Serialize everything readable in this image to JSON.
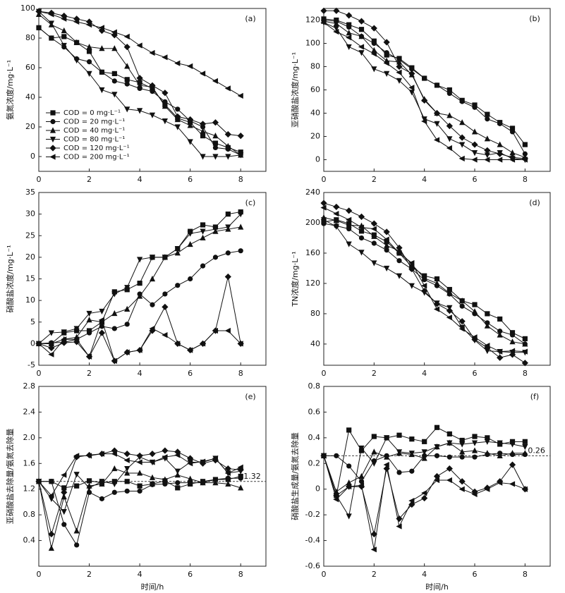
{
  "chart_data": [
    {
      "type": "line",
      "title": "(a)",
      "y_label": "氨氮浓度/mg·L⁻¹",
      "xlim": [
        0,
        9
      ],
      "xticks": [
        0,
        2,
        4,
        6,
        8
      ],
      "ylim": [
        -10,
        100
      ],
      "yticks": [
        0,
        20,
        40,
        60,
        80,
        100
      ],
      "legend": "center left",
      "x": [
        0,
        0.5,
        1,
        1.5,
        2,
        2.5,
        3,
        3.5,
        4,
        4.5,
        5,
        5.5,
        6,
        6.5,
        7,
        7.5,
        8
      ],
      "series": [
        {
          "name": "COD = 0 mg·L⁻¹",
          "color": "#111",
          "marker": "square",
          "values": [
            87,
            80,
            81,
            77,
            71,
            57,
            56,
            52,
            50,
            46,
            35,
            26,
            23,
            14,
            9,
            6,
            3
          ]
        },
        {
          "name": "COD = 20 mg·L⁻¹",
          "color": "#111",
          "marker": "circle",
          "values": [
            87,
            80,
            74,
            66,
            64,
            57,
            51,
            49,
            46,
            44,
            37,
            32,
            24,
            20,
            6,
            5,
            1
          ]
        },
        {
          "name": "COD = 40 mg·L⁻¹",
          "color": "#111",
          "marker": "triangle-up",
          "values": [
            96,
            89,
            85,
            77,
            74,
            73,
            73,
            61,
            48,
            47,
            34,
            25,
            21,
            17,
            14,
            7,
            1
          ]
        },
        {
          "name": "COD = 80 mg·L⁻¹",
          "color": "#111",
          "marker": "triangle-down",
          "values": [
            98,
            90,
            75,
            65,
            56,
            45,
            42,
            32,
            31,
            28,
            24,
            20,
            10,
            0,
            0,
            0,
            1
          ]
        },
        {
          "name": "COD = 120 mg·L⁻¹",
          "color": "#111",
          "marker": "diamond",
          "values": [
            98,
            97,
            95,
            93,
            91,
            85,
            82,
            74,
            53,
            48,
            43,
            27,
            25,
            22,
            23,
            15,
            14
          ]
        },
        {
          "name": "COD = 200 mg·L⁻¹",
          "color": "#111",
          "marker": "triangle-left",
          "values": [
            98,
            96,
            93,
            91,
            89,
            87,
            84,
            81,
            75,
            70,
            67,
            63,
            61,
            56,
            51,
            46,
            41
          ]
        }
      ]
    },
    {
      "type": "line",
      "title": "(b)",
      "y_label": "亚硝酸盐浓度/mg·L⁻¹",
      "xlim": [
        0,
        9
      ],
      "xticks": [
        0,
        2,
        4,
        6,
        8
      ],
      "ylim": [
        -10,
        130
      ],
      "yticks": [
        0,
        20,
        40,
        60,
        80,
        100,
        120
      ],
      "x": [
        0,
        0.5,
        1,
        1.5,
        2,
        2.5,
        3,
        3.5,
        4,
        4.5,
        5,
        5.5,
        6,
        6.5,
        7,
        7.5,
        8
      ],
      "series": [
        {
          "color": "#111",
          "marker": "square",
          "values": [
            121,
            120,
            116,
            112,
            102,
            90,
            87,
            79,
            70,
            64,
            60,
            51,
            47,
            39,
            32,
            27,
            13
          ]
        },
        {
          "color": "#111",
          "marker": "circle",
          "values": [
            120,
            119,
            114,
            106,
            100,
            92,
            86,
            78,
            70,
            64,
            57,
            50,
            45,
            35,
            31,
            24,
            5
          ]
        },
        {
          "color": "#111",
          "marker": "triangle-up",
          "values": [
            119,
            117,
            109,
            106,
            94,
            85,
            84,
            73,
            52,
            40,
            38,
            32,
            24,
            18,
            13,
            6,
            2
          ]
        },
        {
          "color": "#111",
          "marker": "triangle-down",
          "values": [
            118,
            113,
            97,
            92,
            78,
            74,
            68,
            58,
            35,
            31,
            18,
            13,
            6,
            4,
            6,
            1,
            0
          ]
        },
        {
          "color": "#111",
          "marker": "diamond",
          "values": [
            128,
            128,
            124,
            119,
            113,
            101,
            80,
            74,
            51,
            40,
            29,
            19,
            13,
            8,
            5,
            2,
            1
          ]
        },
        {
          "color": "#111",
          "marker": "triangle-left",
          "values": [
            118,
            110,
            105,
            97,
            91,
            83,
            75,
            62,
            33,
            17,
            10,
            1,
            0,
            0,
            0,
            0,
            0
          ]
        }
      ]
    },
    {
      "type": "line",
      "title": "(c)",
      "y_label": "硝酸盐浓度/mg·L⁻¹",
      "xlim": [
        0,
        9
      ],
      "xticks": [
        0,
        2,
        4,
        6,
        8
      ],
      "ylim": [
        -5,
        35
      ],
      "yticks": [
        -5,
        0,
        5,
        10,
        15,
        20,
        25,
        30,
        35
      ],
      "x": [
        0,
        0.5,
        1,
        1.5,
        2,
        2.5,
        3,
        3.5,
        4,
        4.5,
        5,
        5.5,
        6,
        6.5,
        7,
        7.5,
        8
      ],
      "series": [
        {
          "color": "#111",
          "marker": "square",
          "values": [
            0,
            0,
            2.5,
            3,
            3,
            5,
            12,
            12.5,
            14,
            20,
            20,
            22,
            26,
            27.5,
            27,
            30,
            30.5
          ]
        },
        {
          "color": "#111",
          "marker": "circle",
          "values": [
            0,
            0.2,
            0.3,
            1,
            2.5,
            4,
            3.5,
            4.5,
            11.5,
            9,
            11.5,
            13.5,
            15,
            18,
            20,
            21,
            21.5
          ]
        },
        {
          "color": "#111",
          "marker": "triangle-up",
          "values": [
            0,
            0,
            1,
            1.5,
            5.5,
            5,
            7,
            8,
            11,
            15,
            20,
            21,
            23,
            24.5,
            26,
            26.5,
            27
          ]
        },
        {
          "color": "#111",
          "marker": "triangle-down",
          "values": [
            0,
            2.5,
            2.7,
            3.5,
            7,
            7.5,
            11.5,
            13,
            19.5,
            20,
            20,
            22,
            25.5,
            26,
            26.5,
            27,
            30
          ]
        },
        {
          "color": "#111",
          "marker": "diamond",
          "values": [
            0,
            -1,
            0.2,
            0.4,
            -3,
            2.5,
            -4,
            -2,
            -1.5,
            3,
            8.5,
            0,
            -1.5,
            0,
            3,
            15.5,
            0
          ]
        },
        {
          "color": "#111",
          "marker": "triangle-left",
          "values": [
            0,
            -2.5,
            1,
            1,
            -3,
            5.5,
            -4,
            -2,
            -1.5,
            3.5,
            2,
            0,
            -1.5,
            0,
            3,
            3,
            0
          ]
        }
      ]
    },
    {
      "type": "line",
      "title": "(d)",
      "y_label": "TN浓度/mg·L⁻¹",
      "xlim": [
        0,
        9
      ],
      "xticks": [
        0,
        2,
        4,
        6,
        8
      ],
      "ylim": [
        12,
        240
      ],
      "yticks": [
        40,
        80,
        120,
        160,
        200,
        240
      ],
      "x": [
        0,
        0.5,
        1,
        1.5,
        2,
        2.5,
        3,
        3.5,
        4,
        4.5,
        5,
        5.5,
        6,
        6.5,
        7,
        7.5,
        8
      ],
      "series": [
        {
          "color": "#111",
          "marker": "square",
          "values": [
            201,
            204,
            199,
            189,
            184,
            175,
            160,
            142,
            130,
            126,
            112,
            97,
            92,
            80,
            73,
            55,
            47
          ]
        },
        {
          "color": "#111",
          "marker": "circle",
          "values": [
            199,
            196,
            192,
            180,
            173,
            164,
            150,
            139,
            125,
            117,
            106,
            90,
            80,
            68,
            57,
            52,
            40
          ]
        },
        {
          "color": "#111",
          "marker": "triangle-up",
          "values": [
            207,
            203,
            197,
            196,
            182,
            170,
            163,
            145,
            127,
            120,
            107,
            97,
            83,
            64,
            52,
            43,
            40
          ]
        },
        {
          "color": "#111",
          "marker": "triangle-down",
          "values": [
            204,
            195,
            172,
            161,
            147,
            140,
            130,
            117,
            108,
            94,
            88,
            62,
            45,
            31,
            30,
            29,
            29
          ]
        },
        {
          "color": "#111",
          "marker": "diamond",
          "values": [
            226,
            221,
            216,
            208,
            199,
            188,
            167,
            139,
            110,
            93,
            84,
            70,
            46,
            35,
            22,
            26,
            15
          ]
        },
        {
          "color": "#111",
          "marker": "triangle-left",
          "values": [
            220,
            212,
            204,
            194,
            192,
            178,
            160,
            147,
            117,
            86,
            75,
            60,
            49,
            38,
            30,
            31,
            30
          ]
        }
      ]
    },
    {
      "type": "line",
      "title": "(e)",
      "y_label": "亚硝酸盐去除量/氨氮去除量",
      "x_label": "时间/h",
      "xlim": [
        0,
        9
      ],
      "xticks": [
        0,
        2,
        4,
        6,
        8
      ],
      "ylim": [
        0,
        2.8
      ],
      "yticks": [
        0.4,
        0.8,
        1.2,
        1.6,
        {
          "value": 2,
          "label": "2.0"
        },
        2.4,
        2.8
      ],
      "hline": 1.32,
      "x": [
        0,
        0.5,
        1,
        1.5,
        2,
        2.5,
        3,
        3.5,
        4,
        4.5,
        5,
        5.5,
        6,
        6.5,
        7,
        7.5,
        8
      ],
      "series": [
        {
          "color": "#111",
          "marker": "square",
          "values": [
            1.32,
            1.32,
            1.22,
            1.25,
            1.33,
            1.3,
            1.32,
            1.32,
            1.25,
            1.28,
            1.33,
            1.22,
            1.28,
            1.32,
            1.35,
            1.35,
            1.4
          ]
        },
        {
          "color": "#111",
          "marker": "circle",
          "values": [
            1.32,
            1.32,
            0.65,
            0.33,
            1.15,
            1.05,
            1.15,
            1.17,
            1.17,
            1.27,
            1.28,
            1.3,
            1.3,
            1.3,
            1.35,
            1.37,
            1.37
          ]
        },
        {
          "color": "#111",
          "marker": "triangle-up",
          "values": [
            1.32,
            0.28,
            1.08,
            0.55,
            1.25,
            1.28,
            1.52,
            1.45,
            1.45,
            1.38,
            1.35,
            1.42,
            1.36,
            1.3,
            1.3,
            1.28,
            1.22
          ]
        },
        {
          "color": "#111",
          "marker": "triangle-down",
          "values": [
            1.32,
            1.05,
            0.85,
            1.43,
            1.22,
            1.32,
            1.28,
            1.52,
            1.7,
            1.62,
            1.68,
            1.48,
            1.62,
            1.62,
            1.68,
            1.45,
            1.48
          ]
        },
        {
          "color": "#111",
          "marker": "diamond",
          "values": [
            1.32,
            0.5,
            1.15,
            1.7,
            1.73,
            1.75,
            1.8,
            1.75,
            1.72,
            1.75,
            1.8,
            1.78,
            1.68,
            1.6,
            1.65,
            1.52,
            1.5
          ]
        },
        {
          "color": "#111",
          "marker": "triangle-left",
          "values": [
            1.32,
            1.1,
            1.42,
            1.72,
            1.72,
            1.75,
            1.75,
            1.65,
            1.62,
            1.62,
            1.7,
            1.73,
            1.6,
            1.63,
            1.68,
            1.45,
            1.54
          ]
        }
      ]
    },
    {
      "type": "line",
      "title": "(f)",
      "y_label": "硝酸盐生成量/氨氮去除量",
      "x_label": "时间/h",
      "xlim": [
        0,
        9
      ],
      "xticks": [
        0,
        2,
        4,
        6,
        8
      ],
      "ylim": [
        -0.6,
        0.8
      ],
      "yticks": [
        -0.6,
        -0.4,
        -0.2,
        0,
        0.2,
        0.4,
        0.6,
        0.8
      ],
      "hline": 0.26,
      "x": [
        0,
        0.5,
        1,
        1.5,
        2,
        2.5,
        3,
        3.5,
        4,
        4.5,
        5,
        5.5,
        6,
        6.5,
        7,
        7.5,
        8
      ],
      "series": [
        {
          "color": "#111",
          "marker": "square",
          "values": [
            0.26,
            -0.05,
            0.46,
            0.3,
            0.41,
            0.4,
            0.42,
            0.39,
            0.37,
            0.48,
            0.43,
            0.38,
            0.41,
            0.4,
            0.35,
            0.37,
            0.37
          ]
        },
        {
          "color": "#111",
          "marker": "circle",
          "values": [
            0.26,
            0.26,
            0.18,
            0.06,
            0.22,
            0.26,
            0.13,
            0.14,
            0.26,
            0.26,
            0.25,
            0.25,
            0.25,
            0.27,
            0.28,
            0.27,
            0.27
          ]
        },
        {
          "color": "#111",
          "marker": "triangle-up",
          "values": [
            0.26,
            -0.02,
            0.05,
            0.1,
            0.29,
            0.25,
            0.28,
            0.27,
            0.24,
            0.33,
            0.36,
            0.29,
            0.3,
            0.28,
            0.26,
            0.28,
            0.28
          ]
        },
        {
          "color": "#111",
          "marker": "triangle-down",
          "values": [
            0.26,
            -0.05,
            -0.21,
            0.32,
            0.2,
            0.4,
            0.29,
            0.28,
            0.29,
            0.33,
            0.36,
            0.35,
            0.36,
            0.37,
            0.36,
            0.35,
            0.33
          ]
        },
        {
          "color": "#111",
          "marker": "diamond",
          "values": [
            0.26,
            -0.05,
            0.02,
            0.02,
            -0.35,
            0.16,
            -0.23,
            -0.12,
            -0.07,
            0.1,
            0.16,
            0.06,
            -0.02,
            0.01,
            0.06,
            0.19,
            0
          ]
        },
        {
          "color": "#111",
          "marker": "triangle-left",
          "values": [
            0.26,
            -0.08,
            0.02,
            0.03,
            -0.47,
            0.19,
            -0.29,
            -0.09,
            -0.03,
            0.07,
            0.07,
            0,
            -0.04,
            0,
            0.05,
            0.04,
            0
          ]
        }
      ]
    }
  ]
}
